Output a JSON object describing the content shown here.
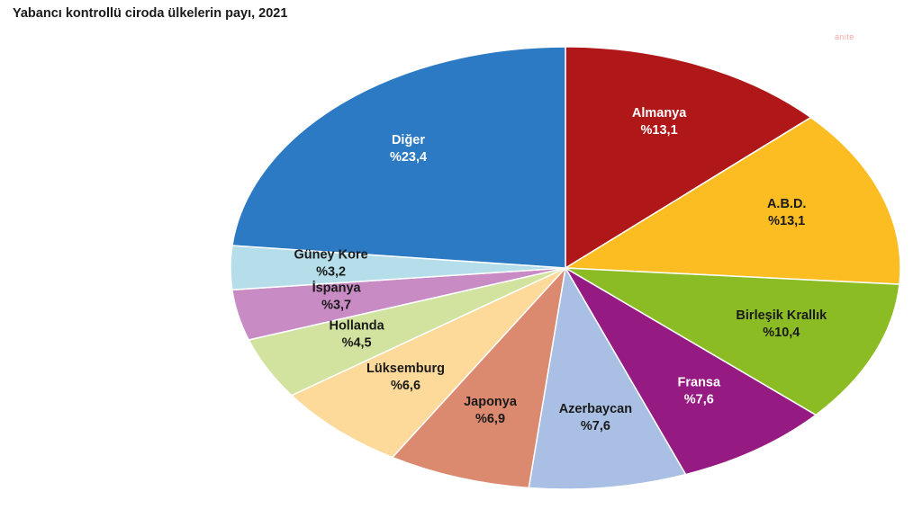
{
  "watermark": "anıte",
  "chart_data": {
    "type": "pie",
    "title": "Yabancı kontrollü ciroda ülkelerin payı, 2021",
    "slices": [
      {
        "name": "Almanya",
        "label": "%13,1",
        "value": 13.1,
        "color": "#b01718",
        "text_color": "#ffffff"
      },
      {
        "name": "A.B.D.",
        "label": "%13,1",
        "value": 13.1,
        "color": "#fbbd22",
        "text_color": "#1a1a1a"
      },
      {
        "name": "Birleşik Krallık",
        "label": "%10,4",
        "value": 10.4,
        "color": "#8cbc24",
        "text_color": "#1a1a1a"
      },
      {
        "name": "Fransa",
        "label": "%7,6",
        "value": 7.6,
        "color": "#951b82",
        "text_color": "#ffffff"
      },
      {
        "name": "Azerbaycan",
        "label": "%7,6",
        "value": 7.6,
        "color": "#a9c0e4",
        "text_color": "#1a1a1a"
      },
      {
        "name": "Japonya",
        "label": "%6,9",
        "value": 6.9,
        "color": "#db8a70",
        "text_color": "#1a1a1a"
      },
      {
        "name": "Lüksemburg",
        "label": "%6,6",
        "value": 6.6,
        "color": "#fdd99a",
        "text_color": "#1a1a1a"
      },
      {
        "name": "Hollanda",
        "label": "%4,5",
        "value": 4.5,
        "color": "#d2e3a0",
        "text_color": "#1a1a1a"
      },
      {
        "name": "İspanya",
        "label": "%3,7",
        "value": 3.7,
        "color": "#c88bc4",
        "text_color": "#1a1a1a"
      },
      {
        "name": "Güney Kore",
        "label": "%3,2",
        "value": 3.2,
        "color": "#b5deea",
        "text_color": "#1a1a1a"
      },
      {
        "name": "Diğer",
        "label": "%23,4",
        "value": 23.4,
        "color": "#2b7ac3",
        "text_color": "#ffffff"
      }
    ]
  }
}
